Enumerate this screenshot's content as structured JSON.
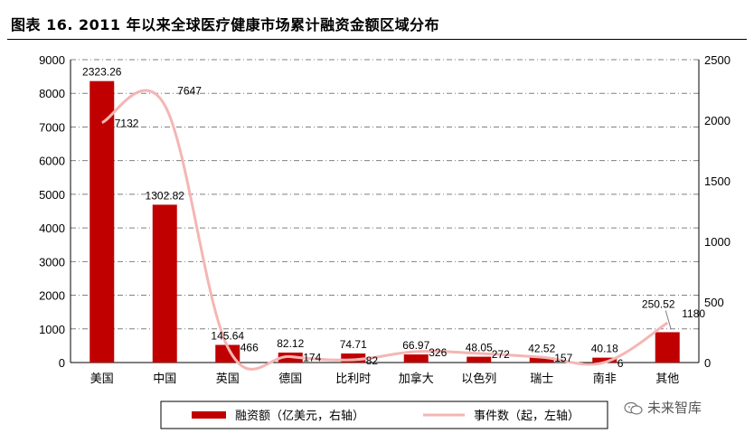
{
  "title": "图表 16. 2011 年以来全球医疗健康市场累计融资金额区域分布",
  "watermark": "未来智库",
  "chart_data": {
    "type": "bar+line",
    "categories": [
      "美国",
      "中国",
      "英国",
      "德国",
      "比利时",
      "加拿大",
      "以色列",
      "瑞士",
      "南非",
      "其他"
    ],
    "series": [
      {
        "name": "融资额（亿美元，右轴）",
        "type": "bar",
        "axis": "right",
        "values": [
          2323.26,
          1302.82,
          145.64,
          82.12,
          74.71,
          66.97,
          48.05,
          42.52,
          40.18,
          250.52
        ],
        "labels": [
          "2323.26",
          "1302.82",
          "145.64",
          "82.12",
          "74.71",
          "66.97",
          "48.05",
          "42.52",
          "40.18",
          "250.52"
        ]
      },
      {
        "name": "事件数（起，左轴）",
        "type": "line",
        "axis": "left",
        "values": [
          7132,
          7647,
          466,
          174,
          82,
          326,
          272,
          157,
          6,
          1180
        ],
        "labels": [
          "7132",
          "7647",
          "466",
          "174",
          "82",
          "326",
          "272",
          "157",
          "6",
          "1180"
        ]
      }
    ],
    "left_axis": {
      "min": 0,
      "max": 9000,
      "ticks": [
        "0",
        "1000",
        "2000",
        "3000",
        "4000",
        "5000",
        "6000",
        "7000",
        "8000",
        "9000"
      ]
    },
    "right_axis": {
      "min": 0,
      "max": 2500,
      "ticks": [
        "0",
        "500",
        "1000",
        "1500",
        "2000",
        "2500"
      ]
    },
    "grid": true,
    "legend_position": "bottom",
    "colors": {
      "bar": "#c00000",
      "line": "#f4b6b4",
      "grid": "#808080"
    }
  }
}
